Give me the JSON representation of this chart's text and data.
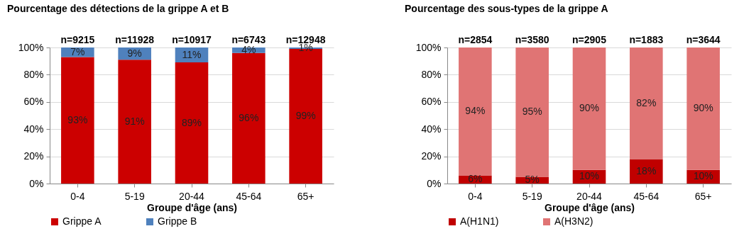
{
  "chart_data": [
    {
      "type": "bar",
      "title": "Pourcentage  des détections de la grippe A et B",
      "xlabel": "Groupe d'âge (ans)",
      "categories": [
        "0-4",
        "5-19",
        "20-44",
        "45-64",
        "65+"
      ],
      "stacked": true,
      "series": [
        {
          "name": "Grippe A",
          "color": "#cc0000",
          "values": [
            93,
            91,
            89,
            96,
            99
          ],
          "value_labels": [
            "93%",
            "91%",
            "89%",
            "96%",
            "99%"
          ]
        },
        {
          "name": "Grippe B",
          "color": "#4f81bd",
          "values": [
            7,
            9,
            11,
            4,
            1
          ],
          "value_labels": [
            "7%",
            "9%",
            "11%",
            "4%",
            "1%"
          ]
        }
      ],
      "annotations": [
        {
          "text": "n=9215",
          "x": "0-4",
          "y": 100
        },
        {
          "text": "n=11928",
          "x": "5-19",
          "y": 100
        },
        {
          "text": "n=10917",
          "x": "20-44",
          "y": 100
        },
        {
          "text": "n=6743",
          "x": "45-64",
          "y": 100
        },
        {
          "text": "n=12948",
          "x": "65+",
          "y": 100
        }
      ],
      "ylim": [
        0,
        100
      ],
      "yticks": [
        {
          "value": 0,
          "label": "0%"
        },
        {
          "value": 20,
          "label": "20%"
        },
        {
          "value": 40,
          "label": "40%"
        },
        {
          "value": 60,
          "label": "60%"
        },
        {
          "value": 80,
          "label": "80%"
        },
        {
          "value": 100,
          "label": "100%"
        }
      ],
      "grid": "y",
      "legend": "bottom"
    },
    {
      "type": "bar",
      "title": "Pourcentage  des sous-types  de la grippe A",
      "xlabel": "Groupe d'âge  (ans)",
      "categories": [
        "0-4",
        "5-19",
        "20-44",
        "45-64",
        "65+"
      ],
      "stacked": true,
      "series": [
        {
          "name": "A(H1N1)",
          "color": "#c00000",
          "values": [
            6,
            5,
            10,
            18,
            10
          ],
          "value_labels": [
            "6%",
            "5%",
            "10%",
            "18%",
            "10%"
          ]
        },
        {
          "name": "A(H3N2)",
          "color": "#e07474",
          "values": [
            94,
            95,
            90,
            82,
            90
          ],
          "value_labels": [
            "94%",
            "95%",
            "90%",
            "82%",
            "90%"
          ]
        }
      ],
      "annotations": [
        {
          "text": "n=2854",
          "x": "0-4",
          "y": 100
        },
        {
          "text": "n=3580",
          "x": "5-19",
          "y": 100
        },
        {
          "text": "n=2905",
          "x": "20-44",
          "y": 100
        },
        {
          "text": "n=1883",
          "x": "45-64",
          "y": 100
        },
        {
          "text": "n=3644",
          "x": "65+",
          "y": 100
        }
      ],
      "ylim": [
        0,
        100
      ],
      "yticks": [
        {
          "value": 0,
          "label": "0%"
        },
        {
          "value": 20,
          "label": "20%"
        },
        {
          "value": 40,
          "label": "40%"
        },
        {
          "value": 60,
          "label": "60%"
        },
        {
          "value": 80,
          "label": "80%"
        },
        {
          "value": 100,
          "label": "100%"
        }
      ],
      "grid": "y",
      "legend": "bottom"
    }
  ]
}
